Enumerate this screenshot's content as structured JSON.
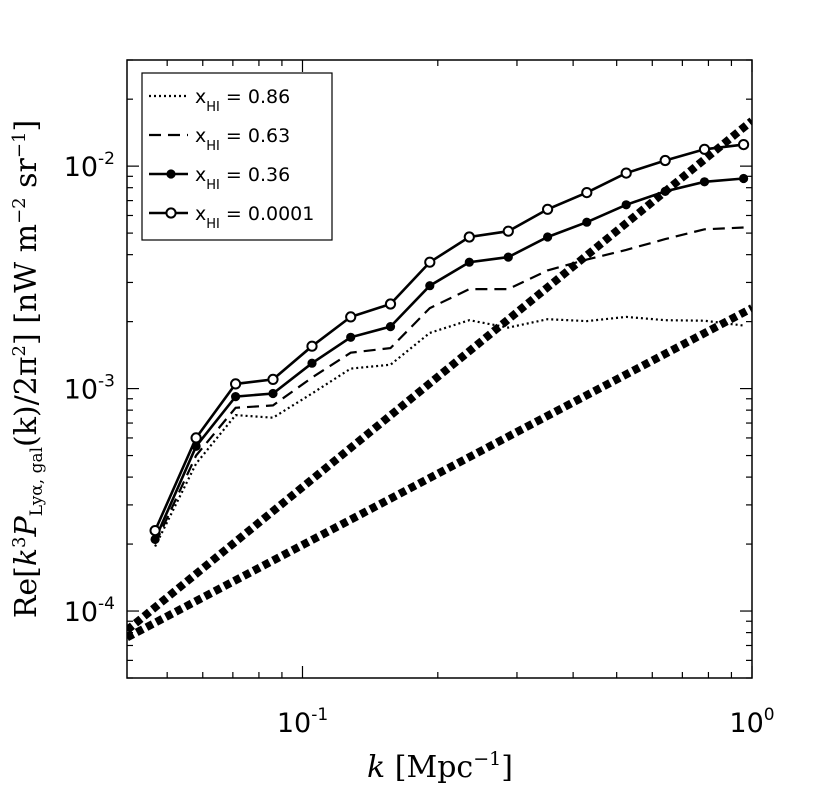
{
  "chart_data": {
    "type": "line",
    "xscale": "log",
    "yscale": "log",
    "xlim": [
      0.0407,
      1.0
    ],
    "ylim": [
      5e-05,
      0.03
    ],
    "grid": false,
    "legend_placement": "top-left",
    "xlabel": "k [Mpc⁻¹]",
    "ylabel": "Re[k³ P_Lyα, gal(k)/2π²] [nW m⁻² sr⁻¹]",
    "ylabel_parts": {
      "pre": "Re[",
      "k": "k",
      "k_exp": "3",
      "P": "P",
      "P_sub": "Lyα, gal",
      "mid": "(k)/2π",
      "pi_exp": "2",
      "unit": "] [nW m",
      "m_exp": "−2",
      "sr": " sr",
      "sr_exp": "−1",
      "end": "]"
    },
    "xlabel_parts": {
      "k": "k",
      "unit": " [Mpc",
      "exp": "−1",
      "end": "]"
    },
    "x_ticks": [
      {
        "value": 0.1,
        "base": "10",
        "exp": "-1"
      },
      {
        "value": 1.0,
        "base": "10",
        "exp": "0"
      }
    ],
    "y_ticks": [
      {
        "value": 0.0001,
        "base": "10",
        "exp": "-4"
      },
      {
        "value": 0.001,
        "base": "10",
        "exp": "-3"
      },
      {
        "value": 0.01,
        "base": "10",
        "exp": "-2"
      }
    ],
    "x": [
      0.047,
      0.058,
      0.071,
      0.086,
      0.105,
      0.128,
      0.157,
      0.192,
      0.235,
      0.287,
      0.351,
      0.429,
      0.525,
      0.641,
      0.784,
      0.958
    ],
    "series": [
      {
        "name": "x_HI = 0.86",
        "legend_base": "x",
        "legend_sub": "HI",
        "legend_value": " = 0.86",
        "style": "dotted",
        "marker": "none",
        "values": [
          0.000195,
          0.00046,
          0.00076,
          0.00074,
          0.00095,
          0.00123,
          0.00128,
          0.00178,
          0.00203,
          0.00188,
          0.00205,
          0.00201,
          0.0021,
          0.00203,
          0.00202,
          0.00192
        ]
      },
      {
        "name": "x_HI = 0.63",
        "legend_base": "x",
        "legend_sub": "HI",
        "legend_value": " = 0.63",
        "style": "dashed",
        "marker": "none",
        "values": [
          0.0002,
          0.0005,
          0.00082,
          0.00084,
          0.00112,
          0.00145,
          0.00152,
          0.0023,
          0.0028,
          0.0028,
          0.0034,
          0.0038,
          0.0042,
          0.0047,
          0.0052,
          0.0053
        ]
      },
      {
        "name": "x_HI = 0.36",
        "legend_base": "x",
        "legend_sub": "HI",
        "legend_value": " = 0.36",
        "style": "solid",
        "marker": "filled-circle",
        "values": [
          0.00021,
          0.00055,
          0.00092,
          0.00095,
          0.0013,
          0.0017,
          0.0019,
          0.0029,
          0.0037,
          0.0039,
          0.0048,
          0.0056,
          0.0067,
          0.0077,
          0.0085,
          0.0088
        ]
      },
      {
        "name": "x_HI = 0.0001",
        "legend_base": "x",
        "legend_sub": "HI",
        "legend_value": " = 0.0001",
        "style": "solid",
        "marker": "open-circle",
        "values": [
          0.00023,
          0.0006,
          0.00105,
          0.0011,
          0.00155,
          0.0021,
          0.0024,
          0.0037,
          0.0048,
          0.0051,
          0.0064,
          0.0076,
          0.0093,
          0.0106,
          0.0119,
          0.0125
        ]
      },
      {
        "name": "steep thick dotted reference line",
        "style": "thick-dotted",
        "marker": "none",
        "x": [
          0.0407,
          1.0
        ],
        "values": [
          8.2e-05,
          0.016
        ]
      },
      {
        "name": "shallow thick dotted reference line",
        "style": "thick-dotted",
        "marker": "none",
        "x": [
          0.0407,
          1.0
        ],
        "values": [
          7.6e-05,
          0.0023
        ]
      }
    ]
  }
}
